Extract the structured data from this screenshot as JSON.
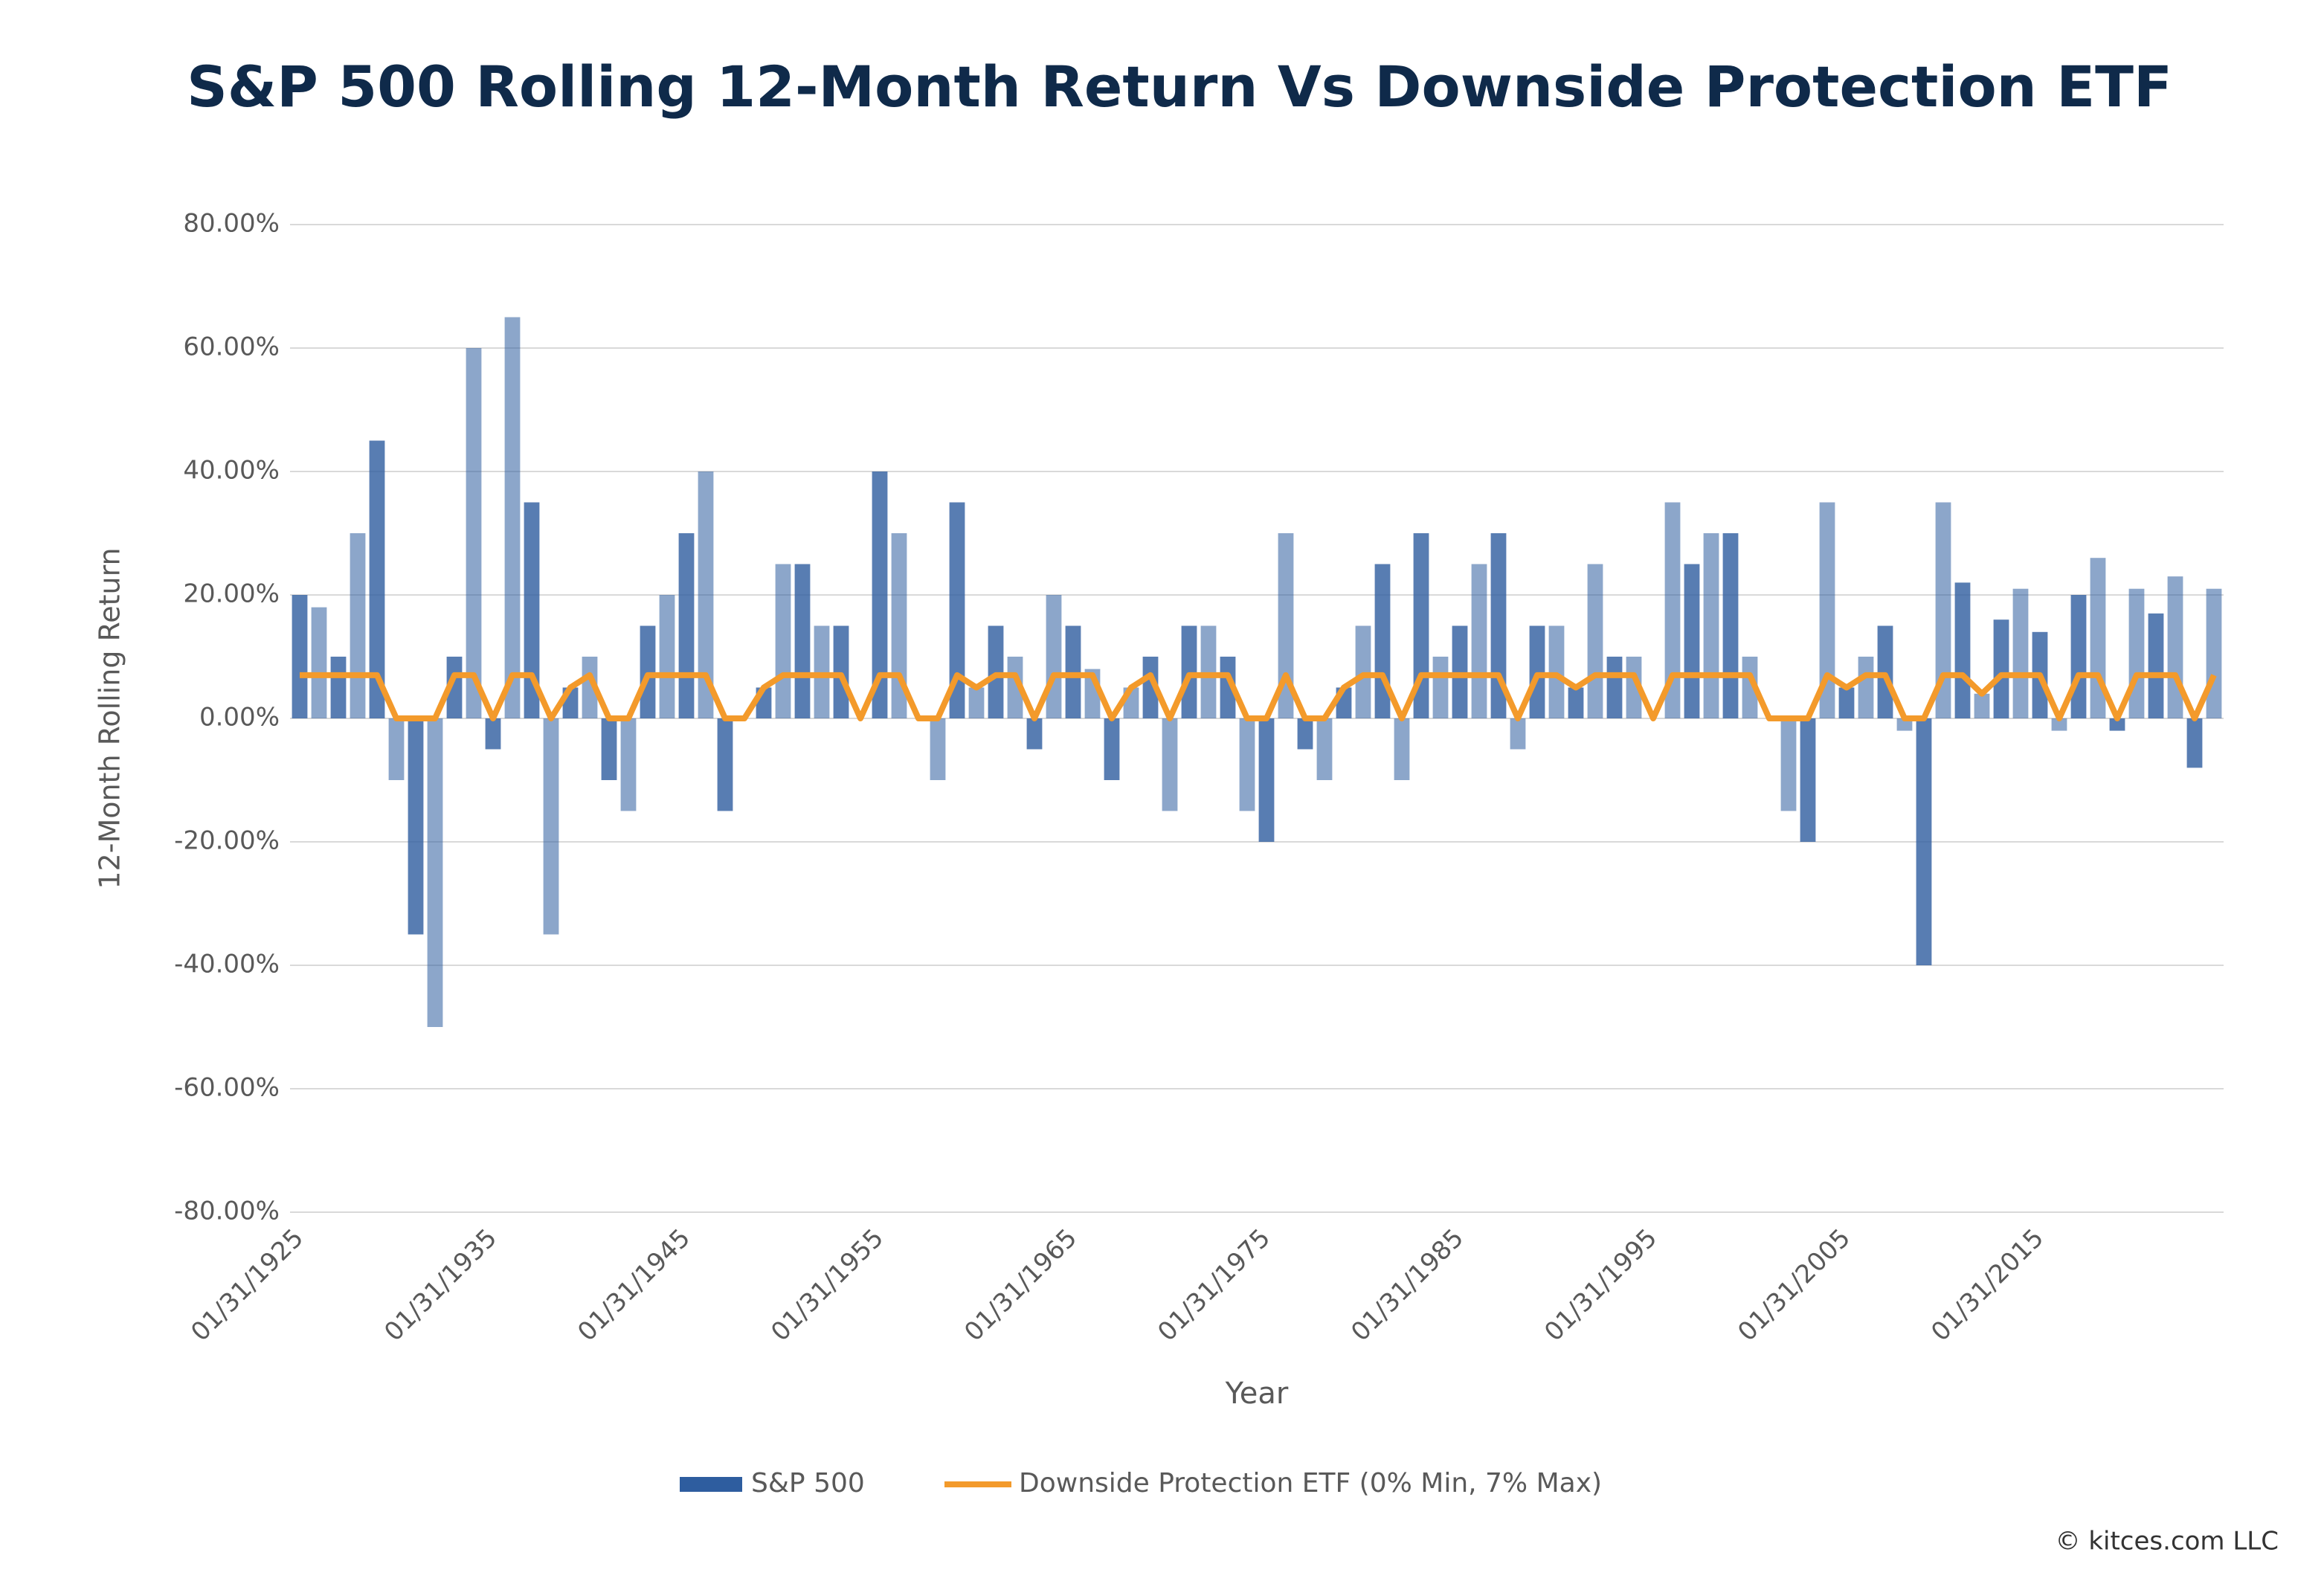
{
  "chart_data": {
    "type": "bar-line",
    "title": "S&P 500 Rolling 12-Month Return Vs Downside Protection ETF",
    "x_label": "Year",
    "y_label": "12-Month Rolling Return",
    "credit": "© kitces.com LLC",
    "categories": [
      "01/31/1925",
      null,
      null,
      null,
      null,
      null,
      null,
      null,
      null,
      null,
      "01/31/1935",
      null,
      null,
      null,
      null,
      null,
      null,
      null,
      null,
      null,
      "01/31/1945",
      null,
      null,
      null,
      null,
      null,
      null,
      null,
      null,
      null,
      "01/31/1955",
      null,
      null,
      null,
      null,
      null,
      null,
      null,
      null,
      null,
      "01/31/1965",
      null,
      null,
      null,
      null,
      null,
      null,
      null,
      null,
      null,
      "01/31/1975",
      null,
      null,
      null,
      null,
      null,
      null,
      null,
      null,
      null,
      "01/31/1985",
      null,
      null,
      null,
      null,
      null,
      null,
      null,
      null,
      null,
      "01/31/1995",
      null,
      null,
      null,
      null,
      null,
      null,
      null,
      null,
      null,
      "01/31/2005",
      null,
      null,
      null,
      null,
      null,
      null,
      null,
      null,
      null,
      "01/31/2015",
      null,
      null,
      null,
      null,
      null,
      null,
      null,
      null,
      null
    ],
    "series": [
      {
        "name": "S&P 500",
        "type": "bar",
        "color": "#2e5d9f",
        "values": [
          20,
          18,
          10,
          30,
          45,
          -10,
          -35,
          -50,
          10,
          60,
          -5,
          65,
          35,
          -35,
          5,
          10,
          -10,
          -15,
          15,
          20,
          30,
          40,
          -15,
          0,
          5,
          25,
          25,
          15,
          15,
          0,
          40,
          30,
          0,
          -10,
          35,
          5,
          15,
          10,
          -5,
          20,
          15,
          8,
          -10,
          5,
          10,
          -15,
          15,
          15,
          10,
          -15,
          -20,
          30,
          -5,
          -10,
          5,
          15,
          25,
          -10,
          30,
          10,
          15,
          25,
          30,
          -5,
          15,
          15,
          5,
          25,
          10,
          10,
          0,
          35,
          25,
          30,
          30,
          10,
          0,
          -15,
          -20,
          35,
          5,
          10,
          15,
          -2,
          -40,
          35,
          22,
          4,
          16,
          21,
          14,
          -2,
          20,
          26,
          -2,
          21,
          17,
          23,
          -8,
          21
        ]
      },
      {
        "name": "Downside Protection ETF (0% Min, 7% Max)",
        "type": "line",
        "color": "#f39a2b",
        "values": [
          7,
          7,
          7,
          7,
          7,
          0,
          0,
          0,
          7,
          7,
          0,
          7,
          7,
          0,
          5,
          7,
          0,
          0,
          7,
          7,
          7,
          7,
          0,
          0,
          5,
          7,
          7,
          7,
          7,
          0,
          7,
          7,
          0,
          0,
          7,
          5,
          7,
          7,
          0,
          7,
          7,
          7,
          0,
          5,
          7,
          0,
          7,
          7,
          7,
          0,
          0,
          7,
          0,
          0,
          5,
          7,
          7,
          0,
          7,
          7,
          7,
          7,
          7,
          0,
          7,
          7,
          5,
          7,
          7,
          7,
          0,
          7,
          7,
          7,
          7,
          7,
          0,
          0,
          0,
          7,
          5,
          7,
          7,
          0,
          0,
          7,
          7,
          4,
          7,
          7,
          7,
          0,
          7,
          7,
          0,
          7,
          7,
          7,
          0,
          7
        ]
      }
    ],
    "ylim": [
      -80,
      80
    ],
    "yticks": [
      {
        "value": -80,
        "label": "-80.00%"
      },
      {
        "value": -60,
        "label": "-60.00%"
      },
      {
        "value": -40,
        "label": "-40.00%"
      },
      {
        "value": -20,
        "label": "-20.00%"
      },
      {
        "value": 0,
        "label": "0.00%"
      },
      {
        "value": 20,
        "label": "20.00%"
      },
      {
        "value": 40,
        "label": "40.00%"
      },
      {
        "value": 60,
        "label": "60.00%"
      },
      {
        "value": 80,
        "label": "80.00%"
      }
    ],
    "grid": true,
    "legend": "bottom"
  }
}
